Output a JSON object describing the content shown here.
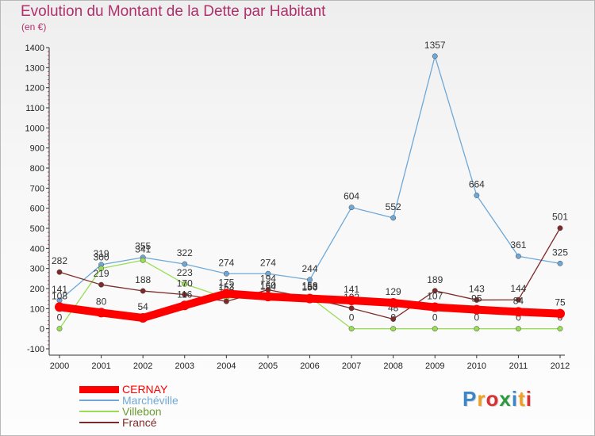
{
  "title": "Evolution du Montant de la Dette par Habitant",
  "unit": "(en €)",
  "logo": "Proxiti",
  "chart_data": {
    "type": "line",
    "categories": [
      "2000",
      "2001",
      "2002",
      "2003",
      "2004",
      "2005",
      "2006",
      "2007",
      "2008",
      "2009",
      "2010",
      "2011",
      "2012"
    ],
    "ylim": [
      -100,
      1400
    ],
    "y_ticks": [
      -100,
      0,
      100,
      200,
      300,
      400,
      500,
      600,
      700,
      800,
      900,
      1000,
      1100,
      1200,
      1300,
      1400
    ],
    "grid": false,
    "legend_position": "bottom-left",
    "series": [
      {
        "name": "CERNAY",
        "color": "#ff0000",
        "values": [
          108,
          80,
          54,
          116,
          175,
          160,
          150,
          141,
          129,
          107,
          95,
          84,
          75
        ]
      },
      {
        "name": "Marchéville",
        "color": "#6fa8d6",
        "values": [
          141,
          319,
          355,
          322,
          274,
          274,
          244,
          604,
          552,
          1357,
          664,
          361,
          325
        ]
      },
      {
        "name": "Villebon",
        "color": "#99dd55",
        "values": [
          0,
          300,
          341,
          223,
          153,
          154,
          158,
          0,
          0,
          0,
          0,
          0,
          0
        ]
      },
      {
        "name": "Francé",
        "color": "#7f2a2a",
        "values": [
          282,
          219,
          188,
          170,
          136,
          194,
          153,
          102,
          48,
          189,
          143,
          144,
          501
        ]
      }
    ]
  }
}
